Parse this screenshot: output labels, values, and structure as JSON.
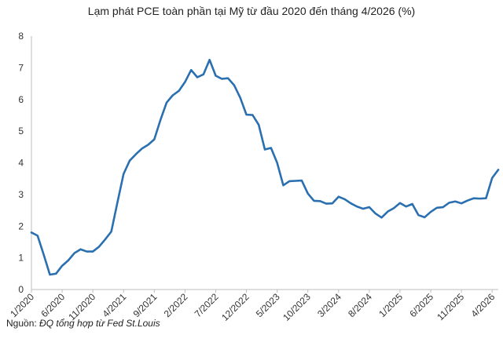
{
  "chart_data": {
    "type": "line",
    "title": "Lạm phát PCE toàn phần tại Mỹ từ đầu 2020 đến tháng 4/2026 (%)",
    "xlabel": "",
    "ylabel": "",
    "ylim": [
      0,
      8
    ],
    "y_ticks": [
      "0",
      "1",
      "2",
      "3",
      "4",
      "5",
      "6",
      "7",
      "8"
    ],
    "x_tick_labels": [
      "1/2020",
      "6/2020",
      "11/2020",
      "4/2021",
      "9/2021",
      "2/2022",
      "7/2022",
      "12/2022",
      "5/2023",
      "10/2023",
      "3/2024",
      "8/2024",
      "1/2025",
      "6/2025",
      "11/2025",
      "4/2026"
    ],
    "grid": false,
    "legend": "none",
    "line_color": "#2a6fb0",
    "series": [
      {
        "values": [
          1.8,
          1.7,
          1.1,
          0.47,
          0.5,
          0.75,
          0.92,
          1.15,
          1.27,
          1.2,
          1.2,
          1.35,
          1.58,
          1.83,
          2.75,
          3.65,
          4.07,
          4.27,
          4.45,
          4.57,
          4.74,
          5.35,
          5.9,
          6.13,
          6.27,
          6.55,
          6.93,
          6.7,
          6.79,
          7.25,
          6.75,
          6.65,
          6.67,
          6.45,
          6.05,
          5.52,
          5.51,
          5.2,
          4.42,
          4.47,
          4.0,
          3.29,
          3.42,
          3.43,
          3.44,
          3.03,
          2.8,
          2.79,
          2.71,
          2.72,
          2.93,
          2.85,
          2.72,
          2.62,
          2.55,
          2.6,
          2.4,
          2.27,
          2.46,
          2.57,
          2.73,
          2.62,
          2.7,
          2.35,
          2.28,
          2.45,
          2.58,
          2.6,
          2.74,
          2.78,
          2.72,
          2.81,
          2.88,
          2.87,
          2.88,
          3.52,
          3.78
        ]
      }
    ]
  },
  "footer": {
    "source_label": "Nguồn: ",
    "source_text": "ĐQ tổng hợp từ Fed St.Louis"
  }
}
